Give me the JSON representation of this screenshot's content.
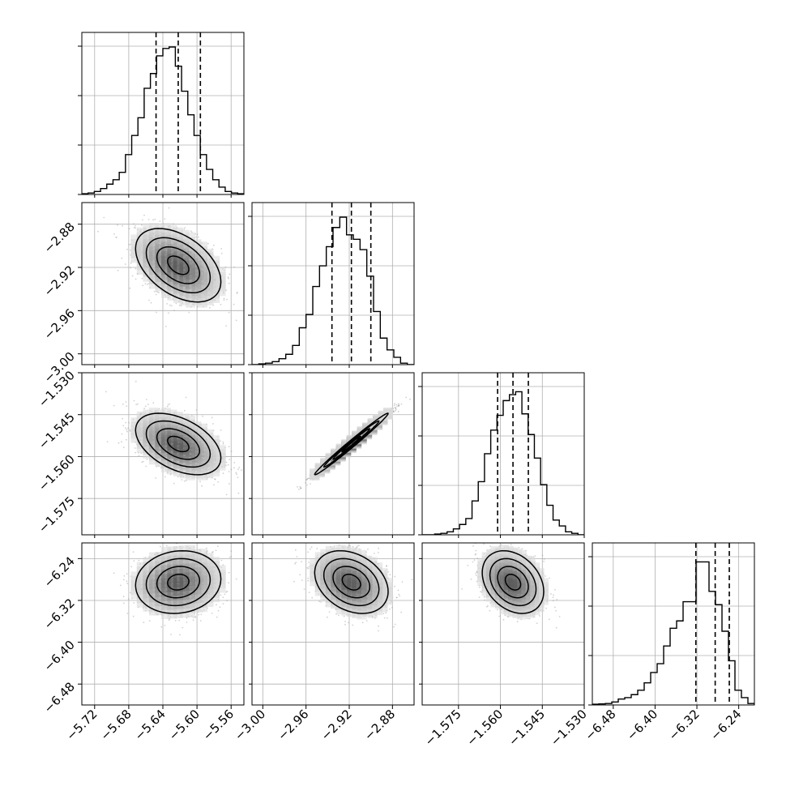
{
  "chart_data": {
    "type": "corner",
    "grid": true,
    "colors": {
      "line": "#000000",
      "scatter": "#9a9a9a"
    },
    "parameters": [
      {
        "axis_ticks": [
          "−5.72",
          "−5.68",
          "−5.64",
          "−5.60",
          "−5.56"
        ],
        "tick_values": [
          -5.72,
          -5.68,
          -5.64,
          -5.6,
          -5.56
        ],
        "range": [
          -5.735,
          -5.545
        ],
        "mean": -5.622,
        "sigma": 0.025,
        "quantiles": [
          -5.648,
          -5.622,
          -5.596
        ]
      },
      {
        "axis_ticks": [
          "−3.00",
          "−2.96",
          "−2.92",
          "−2.88"
        ],
        "tick_values": [
          -3.0,
          -2.96,
          -2.92,
          -2.88
        ],
        "range": [
          -3.01,
          -2.86
        ],
        "mean": -2.918,
        "sigma": 0.017,
        "quantiles": [
          -2.936,
          -2.918,
          -2.9
        ]
      },
      {
        "axis_ticks": [
          "−1.575",
          "−1.560",
          "−1.545",
          "−1.530"
        ],
        "tick_values": [
          -1.575,
          -1.56,
          -1.545,
          -1.53
        ],
        "range": [
          -1.588,
          -1.53
        ],
        "mean": -1.5555,
        "sigma": 0.0055,
        "quantiles": [
          -1.561,
          -1.5555,
          -1.55
        ]
      },
      {
        "axis_ticks": [
          "−6.48",
          "−6.40",
          "−6.32",
          "−6.24"
        ],
        "tick_values": [
          -6.48,
          -6.4,
          -6.32,
          -6.24
        ],
        "range": [
          -6.52,
          -6.21
        ],
        "mean": -6.285,
        "sigma": 0.03,
        "quantiles": [
          -6.322,
          -6.285,
          -6.258
        ]
      }
    ],
    "correlations": [
      [
        1.0,
        -0.45,
        -0.45,
        0.1
      ],
      [
        -0.45,
        1.0,
        0.99,
        -0.3
      ],
      [
        -0.45,
        0.99,
        1.0,
        -0.3
      ],
      [
        0.1,
        -0.3,
        -0.3,
        1.0
      ]
    ],
    "histograms": [
      [
        0.005,
        0.01,
        0.02,
        0.04,
        0.07,
        0.1,
        0.15,
        0.27,
        0.4,
        0.52,
        0.72,
        0.82,
        0.94,
        0.99,
        1.0,
        0.87,
        0.7,
        0.54,
        0.4,
        0.27,
        0.17,
        0.1,
        0.05,
        0.02,
        0.01,
        0.005
      ],
      [
        0.0,
        0.005,
        0.01,
        0.02,
        0.04,
        0.07,
        0.13,
        0.25,
        0.34,
        0.53,
        0.67,
        0.8,
        0.93,
        1.0,
        0.88,
        0.85,
        0.78,
        0.6,
        0.36,
        0.18,
        0.1,
        0.05,
        0.01,
        0.0
      ],
      [
        0.0,
        0.0,
        0.005,
        0.01,
        0.02,
        0.04,
        0.07,
        0.11,
        0.23,
        0.36,
        0.55,
        0.71,
        0.81,
        0.91,
        0.95,
        0.97,
        0.82,
        0.68,
        0.52,
        0.34,
        0.2,
        0.1,
        0.06,
        0.02,
        0.01,
        0.0
      ],
      [
        0.005,
        0.007,
        0.01,
        0.02,
        0.04,
        0.05,
        0.07,
        0.1,
        0.15,
        0.22,
        0.28,
        0.4,
        0.52,
        0.57,
        0.7,
        0.7,
        0.97,
        0.97,
        0.77,
        0.68,
        0.5,
        0.3,
        0.1,
        0.05,
        0.01
      ]
    ]
  }
}
